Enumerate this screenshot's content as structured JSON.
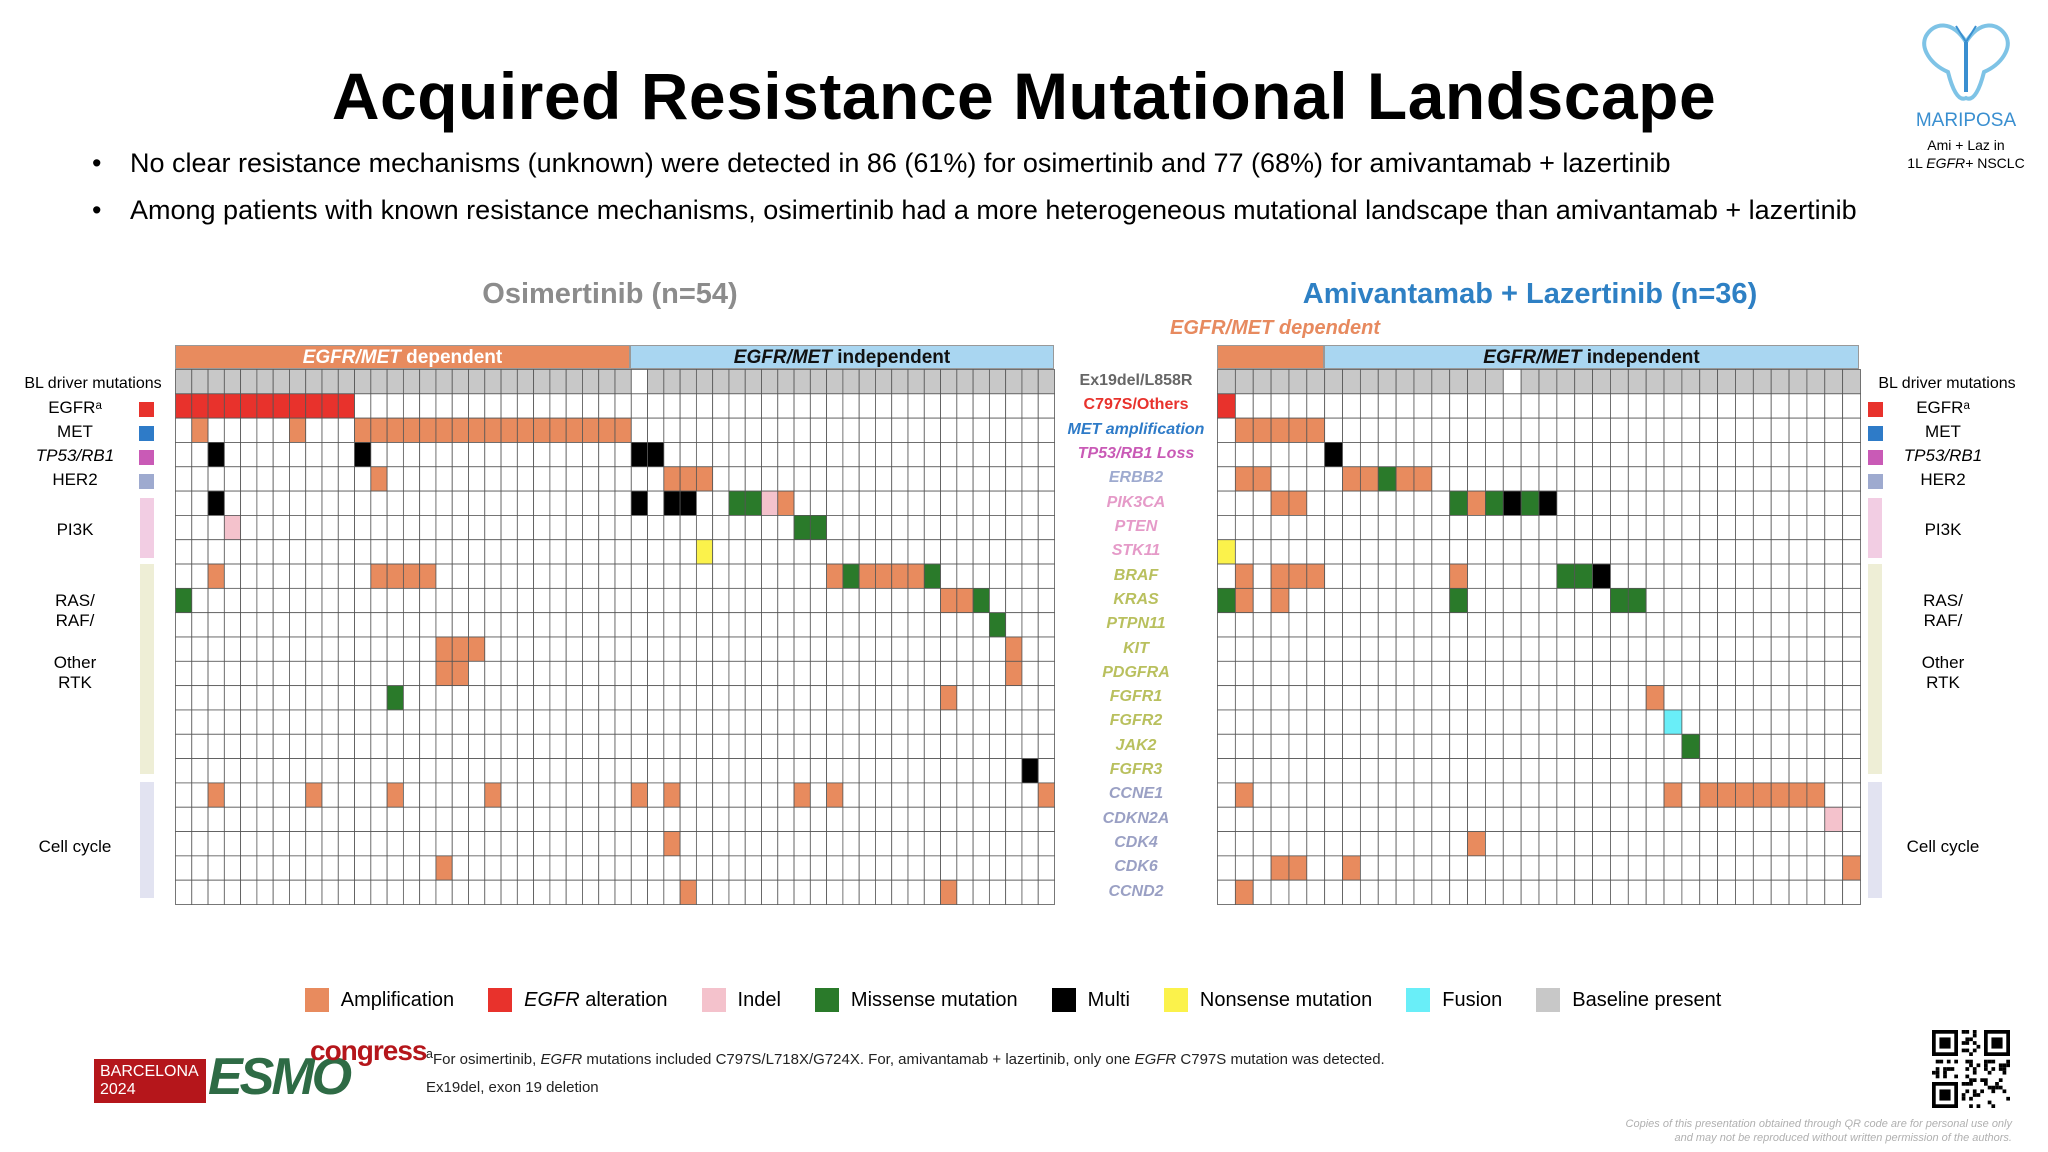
{
  "title": "Acquired Resistance Mutational Landscape",
  "bullets": [
    "No clear resistance mechanisms (unknown) were detected in 86 (61%) for osimertinib and 77 (68%) for amivantamab + lazertinib",
    "Among patients with known resistance mechanisms, osimertinib had a more heterogeneous mutational landscape than amivantamab + lazertinib"
  ],
  "bullet_symbol": "•",
  "logo": {
    "name": "MARIPOSA",
    "sub1": "Ami + Laz in",
    "sub2_pre": "1L ",
    "sub2_em": "EGFR+",
    "sub2_post": " NSCLC",
    "color": "#3a8fd0"
  },
  "panels": {
    "osimertinib": {
      "title": "Osimertinib (n=54)",
      "dependent_em": "EGFR/MET",
      "dependent_rest": " dependent",
      "independent_em": "EGFR/MET",
      "independent_rest": " independent"
    },
    "amivantamab": {
      "title": "Amivantamab + Lazertinib (n=36)",
      "dependent_label": "EGFR/MET dependent",
      "independent_em": "EGFR/MET",
      "independent_rest": " independent"
    }
  },
  "side_labels": {
    "bl_driver": "BL driver mutations",
    "egfr": "EGFRᵃ",
    "met": "MET",
    "tp53": "TP53/RB1",
    "her2": "HER2",
    "pi3k": "PI3K",
    "ras1": "RAS/",
    "ras2": "RAF/",
    "rtk1": "Other",
    "rtk2": "RTK",
    "cellcycle": "Cell cycle"
  },
  "side_markers": {
    "egfr": "#e8322c",
    "met": "#2e7bc8",
    "tp53": "#c95ab6",
    "her2": "#9eaacf"
  },
  "category_colors": {
    "pi3k": "#f2cde3",
    "ras_rtk": "#eeeed6",
    "cellcycle": "#e2e3f1"
  },
  "colors": {
    "A": "#e88b5e",
    "E": "#e8322c",
    "I": "#f4c2cc",
    "M": "#2a7a2a",
    "X": "#000000",
    "N": "#fbf24b",
    "F": "#69eef8",
    "B": "#c8c8c8",
    "grid": "#555555",
    "empty": "#ffffff"
  },
  "chart_data": [
    {
      "type": "heatmap",
      "name": "Osimertinib (n=54)",
      "columns": 54,
      "groups": [
        {
          "label": "EGFR/MET dependent",
          "start": 0,
          "end": 28
        },
        {
          "label": "EGFR/MET independent",
          "start": 28,
          "end": 54
        }
      ],
      "rows": [
        "Ex19del/L858R",
        "C797S/Others",
        "MET amplification",
        "TP53/RB1 Loss",
        "ERBB2",
        "PIK3CA",
        "PTEN",
        "STK11",
        "BRAF",
        "KRAS",
        "PTPN11",
        "KIT",
        "PDGFRA",
        "FGFR1",
        "FGFR2",
        "JAK2",
        "FGFR3",
        "CCNE1",
        "CDKN2A",
        "CDK4",
        "CDK6",
        "CCND2"
      ],
      "cells": [
        {
          "row": 0,
          "cols": [
            0,
            1,
            2,
            3,
            4,
            5,
            6,
            7,
            8,
            9,
            10,
            11,
            12,
            13,
            14,
            15,
            16,
            17,
            18,
            19,
            20,
            21,
            22,
            23,
            24,
            25,
            26,
            27,
            29,
            30,
            31,
            32,
            33,
            34,
            35,
            36,
            37,
            38,
            39,
            40,
            41,
            42,
            43,
            44,
            45,
            46,
            47,
            48,
            49,
            50,
            51,
            52,
            53
          ],
          "v": "B"
        },
        {
          "row": 1,
          "cols": [
            0,
            1,
            2,
            3,
            4,
            5,
            6,
            7,
            8,
            9,
            10
          ],
          "v": "E"
        },
        {
          "row": 2,
          "cols": [
            1,
            7,
            11,
            12,
            13,
            14,
            15,
            16,
            17,
            18,
            19,
            20,
            21,
            22,
            23,
            24,
            25,
            26,
            27
          ],
          "v": "A"
        },
        {
          "row": 3,
          "cols": [
            2,
            11,
            28,
            29
          ],
          "v": "X"
        },
        {
          "row": 4,
          "cols": [
            12,
            30,
            31,
            32
          ],
          "v": "A"
        },
        {
          "row": 5,
          "cols": [
            2,
            28,
            30,
            31
          ],
          "v": "X"
        },
        {
          "row": 5,
          "cols": [
            34,
            35
          ],
          "v": "M"
        },
        {
          "row": 5,
          "cols": [
            36
          ],
          "v": "I"
        },
        {
          "row": 5,
          "cols": [
            37
          ],
          "v": "A"
        },
        {
          "row": 6,
          "cols": [
            3
          ],
          "v": "I"
        },
        {
          "row": 6,
          "cols": [
            38,
            39
          ],
          "v": "M"
        },
        {
          "row": 7,
          "cols": [
            32
          ],
          "v": "N"
        },
        {
          "row": 8,
          "cols": [
            2,
            12,
            13,
            14,
            15,
            40,
            42,
            43,
            44,
            45
          ],
          "v": "A"
        },
        {
          "row": 8,
          "cols": [
            41,
            46
          ],
          "v": "M"
        },
        {
          "row": 9,
          "cols": [
            0,
            49
          ],
          "v": "M"
        },
        {
          "row": 9,
          "cols": [
            47,
            48
          ],
          "v": "A"
        },
        {
          "row": 10,
          "cols": [
            50
          ],
          "v": "M"
        },
        {
          "row": 11,
          "cols": [
            16,
            17,
            18,
            51
          ],
          "v": "A"
        },
        {
          "row": 12,
          "cols": [
            16,
            17,
            51
          ],
          "v": "A"
        },
        {
          "row": 13,
          "cols": [
            13
          ],
          "v": "M"
        },
        {
          "row": 13,
          "cols": [
            47
          ],
          "v": "A"
        },
        {
          "row": 16,
          "cols": [
            52
          ],
          "v": "X"
        },
        {
          "row": 17,
          "cols": [
            2,
            8,
            13,
            19,
            28,
            30,
            38,
            40,
            53
          ],
          "v": "A"
        },
        {
          "row": 19,
          "cols": [
            30
          ],
          "v": "A"
        },
        {
          "row": 20,
          "cols": [
            16
          ],
          "v": "A"
        },
        {
          "row": 21,
          "cols": [
            31,
            47
          ],
          "v": "A"
        }
      ]
    },
    {
      "type": "heatmap",
      "name": "Amivantamab + Lazertinib (n=36)",
      "columns": 36,
      "groups": [
        {
          "label": "EGFR/MET dependent",
          "start": 0,
          "end": 6
        },
        {
          "label": "EGFR/MET independent",
          "start": 6,
          "end": 36
        }
      ],
      "rows": [
        "Ex19del/L858R",
        "C797S/Others",
        "MET amplification",
        "TP53/RB1 Loss",
        "ERBB2",
        "PIK3CA",
        "PTEN",
        "STK11",
        "BRAF",
        "KRAS",
        "PTPN11",
        "KIT",
        "PDGFRA",
        "FGFR1",
        "FGFR2",
        "JAK2",
        "FGFR3",
        "CCNE1",
        "CDKN2A",
        "CDK4",
        "CDK6",
        "CCND2"
      ],
      "cells": [
        {
          "row": 0,
          "cols": [
            0,
            1,
            2,
            3,
            4,
            5,
            6,
            7,
            8,
            9,
            10,
            11,
            12,
            13,
            14,
            15,
            17,
            18,
            19,
            20,
            21,
            22,
            23,
            24,
            25,
            26,
            27,
            28,
            29,
            30,
            31,
            32,
            33,
            34,
            35
          ],
          "v": "B"
        },
        {
          "row": 1,
          "cols": [
            0
          ],
          "v": "E"
        },
        {
          "row": 2,
          "cols": [
            1,
            2,
            3,
            4,
            5
          ],
          "v": "A"
        },
        {
          "row": 3,
          "cols": [
            6
          ],
          "v": "X"
        },
        {
          "row": 4,
          "cols": [
            1,
            2,
            7,
            8,
            10,
            11
          ],
          "v": "A"
        },
        {
          "row": 4,
          "cols": [
            9
          ],
          "v": "M"
        },
        {
          "row": 5,
          "cols": [
            3,
            4,
            14
          ],
          "v": "A"
        },
        {
          "row": 5,
          "cols": [
            13,
            15,
            17
          ],
          "v": "M"
        },
        {
          "row": 5,
          "cols": [
            16,
            18
          ],
          "v": "X"
        },
        {
          "row": 7,
          "cols": [
            0
          ],
          "v": "N"
        },
        {
          "row": 8,
          "cols": [
            1,
            3,
            4,
            5,
            13
          ],
          "v": "A"
        },
        {
          "row": 8,
          "cols": [
            19,
            20
          ],
          "v": "M"
        },
        {
          "row": 8,
          "cols": [
            21
          ],
          "v": "X"
        },
        {
          "row": 9,
          "cols": [
            0,
            13,
            22,
            23
          ],
          "v": "M"
        },
        {
          "row": 9,
          "cols": [
            1,
            3
          ],
          "v": "A"
        },
        {
          "row": 13,
          "cols": [
            24
          ],
          "v": "A"
        },
        {
          "row": 14,
          "cols": [
            25
          ],
          "v": "F"
        },
        {
          "row": 15,
          "cols": [
            26
          ],
          "v": "M"
        },
        {
          "row": 17,
          "cols": [
            1,
            25,
            27,
            28,
            29,
            30,
            31,
            32,
            33
          ],
          "v": "A"
        },
        {
          "row": 18,
          "cols": [
            34
          ],
          "v": "I"
        },
        {
          "row": 19,
          "cols": [
            14
          ],
          "v": "A"
        },
        {
          "row": 20,
          "cols": [
            3,
            4,
            7,
            35
          ],
          "v": "A"
        },
        {
          "row": 21,
          "cols": [
            1
          ],
          "v": "A"
        }
      ]
    }
  ],
  "gene_labels": [
    {
      "text": "Ex19del/L858R",
      "color": "#666666",
      "upright": true
    },
    {
      "text": "C797S/Others",
      "color": "#e8322c",
      "upright": true
    },
    {
      "text": "MET amplification",
      "color": "#2e7bc8",
      "upright": false
    },
    {
      "text": "TP53/RB1 Loss",
      "color": "#c95ab6",
      "upright": false
    },
    {
      "text": "ERBB2",
      "color": "#9eaacf",
      "upright": false
    },
    {
      "text": "PIK3CA",
      "color": "#e59ac8",
      "upright": false
    },
    {
      "text": "PTEN",
      "color": "#e59ac8",
      "upright": false
    },
    {
      "text": "STK11",
      "color": "#e59ac8",
      "upright": false
    },
    {
      "text": "BRAF",
      "color": "#b9c05e",
      "upright": false
    },
    {
      "text": "KRAS",
      "color": "#b9c05e",
      "upright": false
    },
    {
      "text": "PTPN11",
      "color": "#b9c05e",
      "upright": false
    },
    {
      "text": "KIT",
      "color": "#b9c05e",
      "upright": false
    },
    {
      "text": "PDGFRA",
      "color": "#b9c05e",
      "upright": false
    },
    {
      "text": "FGFR1",
      "color": "#b9c05e",
      "upright": false
    },
    {
      "text": "FGFR2",
      "color": "#b9c05e",
      "upright": false
    },
    {
      "text": "JAK2",
      "color": "#b9c05e",
      "upright": false
    },
    {
      "text": "FGFR3",
      "color": "#b9c05e",
      "upright": false
    },
    {
      "text": "CCNE1",
      "color": "#9aa0c4",
      "upright": false
    },
    {
      "text": "CDKN2A",
      "color": "#9aa0c4",
      "upright": false
    },
    {
      "text": "CDK4",
      "color": "#9aa0c4",
      "upright": false
    },
    {
      "text": "CDK6",
      "color": "#9aa0c4",
      "upright": false
    },
    {
      "text": "CCND2",
      "color": "#9aa0c4",
      "upright": false
    }
  ],
  "legend": [
    {
      "key": "A",
      "label": "Amplification",
      "italic_prefix": ""
    },
    {
      "key": "E",
      "label": " alteration",
      "italic_prefix": "EGFR"
    },
    {
      "key": "I",
      "label": "Indel",
      "italic_prefix": ""
    },
    {
      "key": "M",
      "label": "Missense mutation",
      "italic_prefix": ""
    },
    {
      "key": "X",
      "label": "Multi",
      "italic_prefix": ""
    },
    {
      "key": "N",
      "label": "Nonsense mutation",
      "italic_prefix": ""
    },
    {
      "key": "F",
      "label": "Fusion",
      "italic_prefix": ""
    },
    {
      "key": "B",
      "label": "Baseline present",
      "italic_prefix": ""
    }
  ],
  "esmo": {
    "city": "BARCELONA",
    "year": "2024",
    "brand": "ESMO",
    "event": "congress"
  },
  "footnote1": {
    "sup": "a",
    "p1": "For osimertinib, ",
    "em1": "EGFR",
    "p2": " mutations included C797S/L718X/G724X. For, amivantamab + lazertinib, only one ",
    "em2": "EGFR",
    "p3": " C797S mutation was detected."
  },
  "footnote2": "Ex19del, exon 19 deletion",
  "copyright1": "Copies of this presentation obtained through QR code are for personal use only",
  "copyright2": "and may not be reproduced without written permission of the authors."
}
